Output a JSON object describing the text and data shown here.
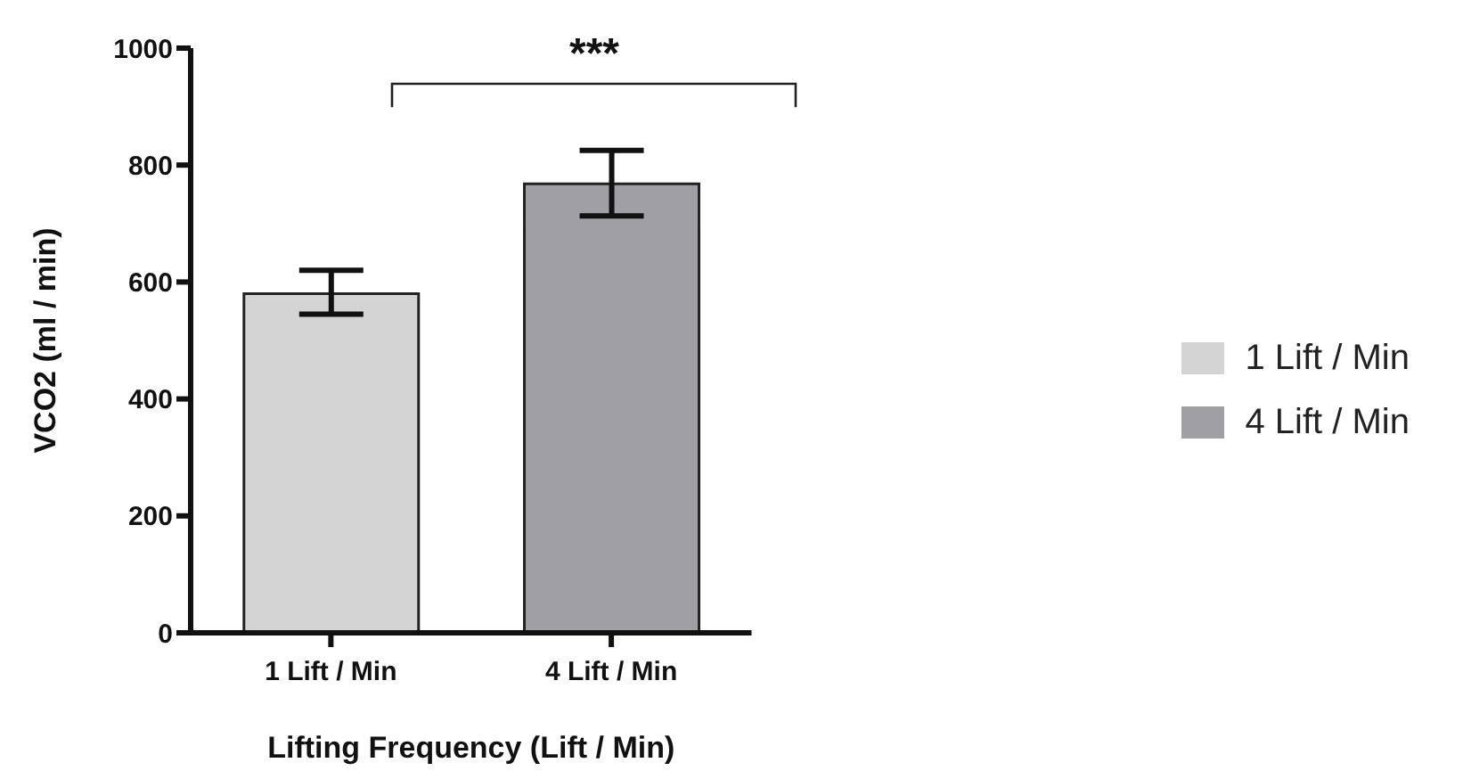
{
  "chart_data": {
    "type": "bar",
    "xlabel": "Lifting Frequency (Lift / Min)",
    "ylabel": "VCO2 (ml / min)",
    "categories": [
      "1 Lift / Min",
      "4 Lift / Min"
    ],
    "stacked": true,
    "series": [
      {
        "name": "1 Lift / Min",
        "color": "#d4d4d4",
        "values": [
          580,
          null
        ],
        "errors": [
          [
            545,
            620
          ],
          null
        ]
      },
      {
        "name": "4 Lift / Min",
        "color": "#a0a0a4",
        "values": [
          null,
          768
        ],
        "errors": [
          null,
          [
            713,
            825
          ]
        ]
      }
    ],
    "ylim": [
      0,
      1000
    ],
    "yticks": [
      0,
      200,
      400,
      600,
      800,
      1000
    ],
    "legend": "right",
    "annotations": [
      "***"
    ]
  }
}
